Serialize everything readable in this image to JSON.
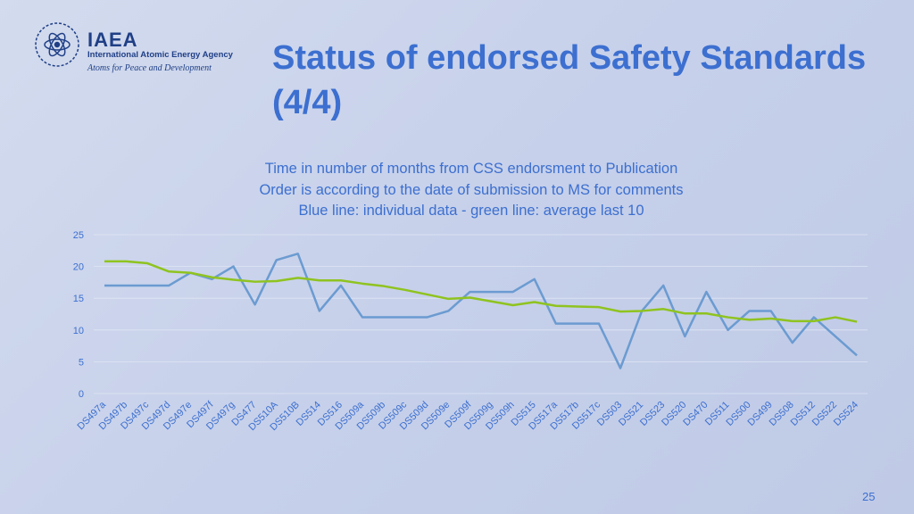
{
  "header": {
    "logo_name": "IAEA",
    "logo_sub": "International Atomic Energy Agency",
    "logo_tagline": "Atoms for Peace and Development",
    "title": "Status of endorsed Safety Standards (4/4)"
  },
  "chart_data": {
    "type": "line",
    "subtitle": [
      "Time in number of months from CSS endorsment to Publication",
      "Order is according to the date of submission to MS for comments",
      "Blue line: individual data - green line: average last 10"
    ],
    "categories": [
      "DS497a",
      "DS497b",
      "DS497c",
      "DS497d",
      "DS497e",
      "DS497f",
      "DS497g",
      "DS477",
      "DS510A",
      "DS510B",
      "DS514",
      "DS516",
      "DS509a",
      "DS509b",
      "DS509c",
      "DS509d",
      "DS509e",
      "DS509f",
      "DS509g",
      "DS509h",
      "DS515",
      "DS517a",
      "DS517b",
      "DS517c",
      "DS503",
      "DS521",
      "DS523",
      "DS520",
      "DS470",
      "DS511",
      "DS500",
      "DS499",
      "DS508",
      "DS512",
      "DS522",
      "DS524"
    ],
    "series": [
      {
        "color": "#6b9bd1",
        "values": [
          17,
          17,
          17,
          17,
          19,
          18,
          20,
          14,
          21,
          22,
          13,
          17,
          12,
          12,
          12,
          12,
          13,
          16,
          16,
          16,
          18,
          11,
          11,
          11,
          4,
          13,
          17,
          9,
          16,
          10,
          13,
          13,
          8,
          12,
          9,
          6
        ]
      },
      {
        "color": "#8fc31f",
        "values": [
          20.8,
          20.8,
          20.5,
          19.2,
          19.0,
          18.3,
          17.9,
          17.6,
          17.7,
          18.2,
          17.8,
          17.8,
          17.3,
          16.9,
          16.3,
          15.6,
          14.9,
          15.1,
          14.5,
          13.9,
          14.4,
          13.8,
          13.7,
          13.6,
          12.9,
          13.0,
          13.3,
          12.6,
          12.6,
          12.0,
          11.6,
          11.8,
          11.4,
          11.4,
          12.0,
          11.3
        ]
      }
    ],
    "ylim": [
      0,
      25
    ],
    "yticks": [
      0,
      5,
      10,
      15,
      20,
      25
    ],
    "grid": true
  },
  "page_number": "25"
}
